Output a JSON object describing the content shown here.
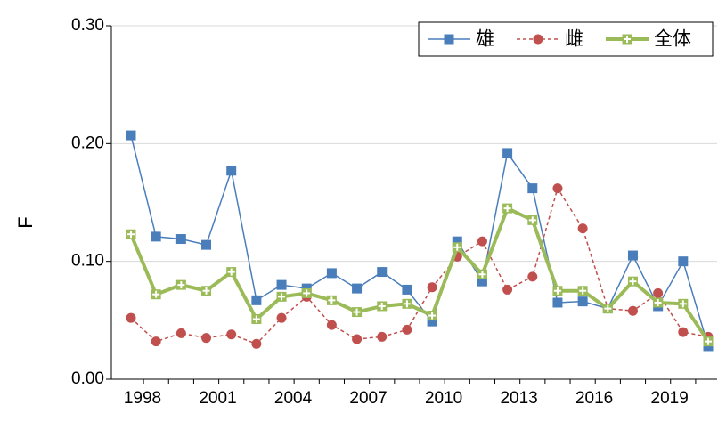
{
  "chart_data": {
    "type": "line",
    "y_label": "F",
    "categories": [
      "1998",
      null,
      null,
      "2001",
      null,
      null,
      "2004",
      null,
      null,
      "2007",
      null,
      null,
      "2010",
      null,
      null,
      "2013",
      null,
      null,
      "2016",
      null,
      null,
      "2019",
      null,
      null
    ],
    "series": [
      {
        "name": "雄",
        "color": "#4a7ebb",
        "marker": "square",
        "dash": false,
        "values": [
          0.207,
          0.121,
          0.119,
          0.114,
          0.177,
          0.067,
          0.08,
          0.077,
          0.09,
          0.077,
          0.091,
          0.076,
          0.049,
          0.117,
          0.083,
          0.192,
          0.162,
          0.065,
          0.066,
          0.06,
          0.105,
          0.062,
          0.1,
          0.028
        ]
      },
      {
        "name": "雌",
        "color": "#c0504d",
        "marker": "circle",
        "dash": true,
        "values": [
          0.052,
          0.032,
          0.039,
          0.035,
          0.038,
          0.03,
          0.052,
          0.07,
          0.046,
          0.034,
          0.036,
          0.042,
          0.078,
          0.104,
          0.117,
          0.076,
          0.087,
          0.162,
          0.128,
          0.06,
          0.058,
          0.073,
          0.04,
          0.036
        ]
      },
      {
        "name": "全体",
        "color": "#9bbb59",
        "marker": "cross-square",
        "dash": false,
        "values": [
          0.123,
          0.072,
          0.08,
          0.075,
          0.091,
          0.051,
          0.07,
          0.073,
          0.067,
          0.057,
          0.062,
          0.064,
          0.054,
          0.112,
          0.089,
          0.145,
          0.135,
          0.075,
          0.075,
          0.06,
          0.083,
          0.065,
          0.064,
          0.032
        ]
      }
    ],
    "ylim": [
      0,
      0.3
    ],
    "yticks": [
      {
        "value": 0,
        "label": "0.00"
      },
      {
        "value": 0.1,
        "label": "0.10"
      },
      {
        "value": 0.2,
        "label": "0.20"
      },
      {
        "value": 0.3,
        "label": "0.30"
      }
    ],
    "grid": true,
    "legend": "top-right"
  }
}
